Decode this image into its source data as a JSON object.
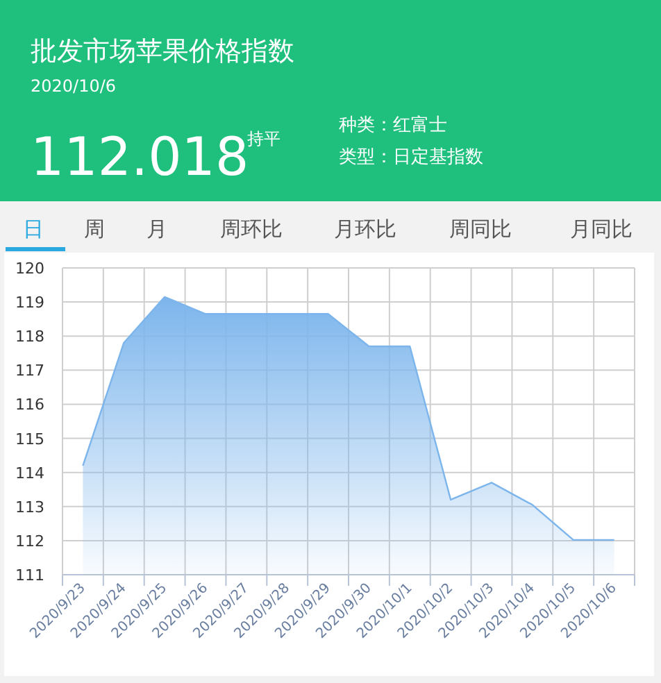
{
  "chart_data": {
    "type": "area",
    "title": "批发市场苹果价格指数",
    "subtitle": "2020/10/6",
    "annotations": [
      "112.018",
      "持平",
      "种类：红富士",
      "类型：日定基指数",
      "日",
      "周",
      "月",
      "周环比",
      "月环比",
      "周同比",
      "月同比"
    ],
    "categories": [
      "2020/9/23",
      "2020/9/24",
      "2020/9/25",
      "2020/9/26",
      "2020/9/27",
      "2020/9/28",
      "2020/9/29",
      "2020/9/30",
      "2020/10/1",
      "2020/10/2",
      "2020/10/3",
      "2020/10/4",
      "2020/10/5",
      "2020/10/6"
    ],
    "values": [
      114.2,
      117.8,
      119.15,
      118.65,
      118.65,
      118.65,
      118.65,
      117.7,
      117.7,
      113.2,
      113.7,
      113.05,
      112.02,
      112.02
    ],
    "color": "#7cb5ec",
    "ylim": [
      111,
      120
    ],
    "yticks": [
      111,
      112,
      113,
      114,
      115,
      116,
      117,
      118,
      119,
      120
    ],
    "grid": true
  }
}
